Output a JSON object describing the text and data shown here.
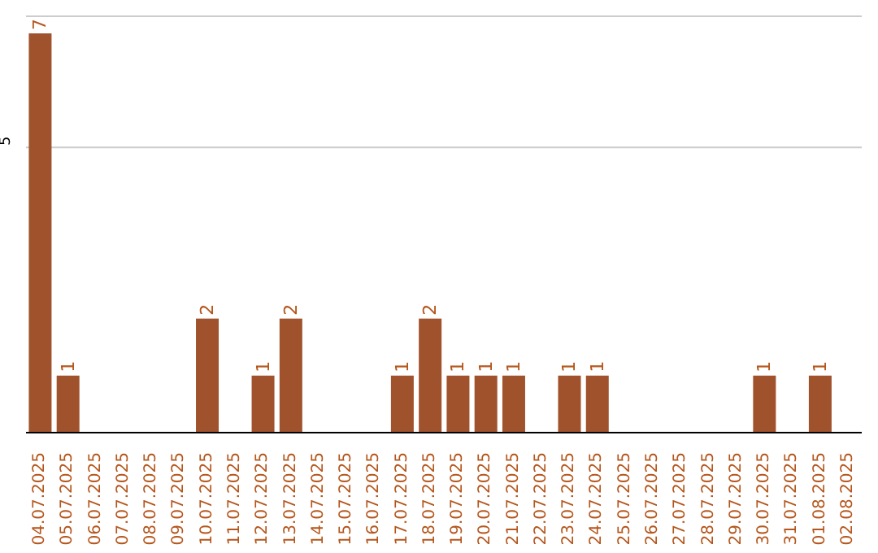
{
  "chart_data": {
    "type": "bar",
    "categories": [
      "04.07.2025",
      "05.07.2025",
      "06.07.2025",
      "07.07.2025",
      "08.07.2025",
      "09.07.2025",
      "10.07.2025",
      "11.07.2025",
      "12.07.2025",
      "13.07.2025",
      "14.07.2025",
      "15.07.2025",
      "16.07.2025",
      "17.07.2025",
      "18.07.2025",
      "19.07.2025",
      "20.07.2025",
      "21.07.2025",
      "22.07.2025",
      "23.07.2025",
      "24.07.2025",
      "25.07.2025",
      "26.07.2025",
      "27.07.2025",
      "28.07.2025",
      "29.07.2025",
      "30.07.2025",
      "31.07.2025",
      "01.08.2025",
      "02.08.2025"
    ],
    "values": [
      7,
      1,
      0,
      0,
      0,
      0,
      2,
      0,
      1,
      2,
      0,
      0,
      0,
      1,
      2,
      1,
      1,
      1,
      0,
      1,
      1,
      0,
      0,
      0,
      0,
      0,
      1,
      0,
      1,
      0
    ],
    "value_labels": [
      "7",
      "1",
      null,
      null,
      null,
      null,
      "2",
      null,
      "1",
      "2",
      null,
      null,
      null,
      "1",
      "2",
      "1",
      "1",
      "1",
      null,
      "1",
      "1",
      null,
      null,
      null,
      null,
      null,
      "1",
      null,
      "1",
      null
    ],
    "color": "#a0522d",
    "ylim": [
      0,
      7.3
    ],
    "yticks": [
      5
    ],
    "grid": "y"
  }
}
